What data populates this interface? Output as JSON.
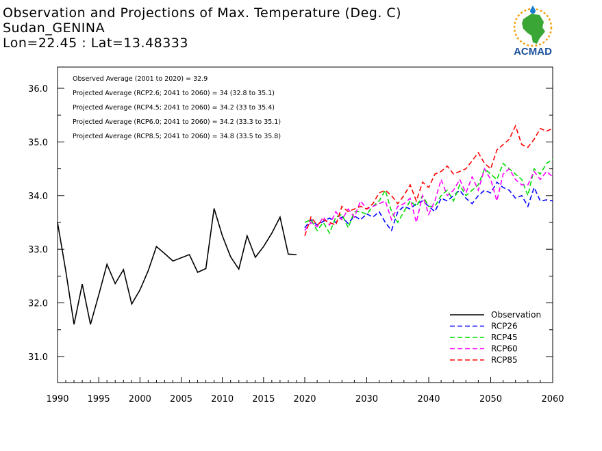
{
  "header": {
    "title": "Observation and Projections of Max. Temperature (Deg. C)",
    "station": "Sudan_GENINA",
    "coords": "Lon=22.45 : Lat=13.48333"
  },
  "logo": {
    "text": "ACMAD",
    "icon": "africa-logo-icon",
    "color": "#1a4f9c",
    "accent": "#f2a20f"
  },
  "annotations": [
    "Observed Average (2001 to 2020) = 32.9",
    "Projected Average (RCP2.6; 2041 to 2060) = 34 (32.8 to 35.1)",
    "Projected Average (RCP4.5; 2041 to 2060) = 34.2 (33 to 35.4)",
    "Projected Average (RCP6.0; 2041 to 2060) = 34.2 (33.3 to 35.1)",
    "Projected Average (RCP8.5; 2041 to 2060) = 34.8 (33.5 to 35.8)"
  ],
  "chart_data": {
    "type": "line",
    "title": "Observation and Projections of Max. Temperature (Deg. C)",
    "xlim": [
      1990,
      2060
    ],
    "ylim": [
      30.5,
      36.5
    ],
    "yticks": [
      "31.0",
      "32.0",
      "33.0",
      "34.0",
      "35.0",
      "36.0"
    ],
    "xticks_left": [
      "1990",
      "1995",
      "2000",
      "2005",
      "2010",
      "2015",
      "2020"
    ],
    "xticks_right": [
      "2020",
      "2030",
      "2040",
      "2050",
      "2060"
    ],
    "legend_position": "bottom-right",
    "series": [
      {
        "name": "Observation",
        "color": "#000000",
        "dash": false,
        "x": [
          1990,
          1991,
          1992,
          1993,
          1994,
          1995,
          1996,
          1997,
          1998,
          1999,
          2000,
          2001,
          2002,
          2003,
          2004,
          2005,
          2006,
          2007,
          2008,
          2009,
          2010,
          2011,
          2012,
          2013,
          2014,
          2015,
          2016,
          2017,
          2018,
          2019
        ],
        "y": [
          33.5,
          32.6,
          31.6,
          32.35,
          31.6,
          32.15,
          32.72,
          32.36,
          32.62,
          31.98,
          32.24,
          32.6,
          33.05,
          32.92,
          32.78,
          32.84,
          32.9,
          32.57,
          32.64,
          33.76,
          33.25,
          32.86,
          32.63,
          33.25,
          32.85,
          33.05,
          33.3,
          33.6,
          32.91,
          32.9
        ]
      },
      {
        "name": "RCP26",
        "color": "#0000ff",
        "dash": true,
        "x": [
          2020,
          2021,
          2022,
          2023,
          2024,
          2025,
          2026,
          2027,
          2028,
          2029,
          2030,
          2031,
          2032,
          2033,
          2034,
          2035,
          2036,
          2037,
          2038,
          2039,
          2040,
          2041,
          2042,
          2043,
          2044,
          2045,
          2046,
          2047,
          2048,
          2049,
          2050,
          2051,
          2052,
          2053,
          2054,
          2055,
          2056,
          2057,
          2058,
          2059,
          2060
        ],
        "y": [
          33.4,
          33.55,
          33.45,
          33.52,
          33.58,
          33.5,
          33.6,
          33.48,
          33.62,
          33.55,
          33.66,
          33.6,
          33.7,
          33.5,
          33.35,
          33.7,
          33.8,
          33.75,
          33.85,
          33.9,
          33.8,
          33.7,
          33.95,
          33.9,
          34.0,
          34.1,
          33.95,
          33.85,
          34.0,
          34.1,
          34.05,
          34.25,
          34.15,
          34.1,
          33.95,
          34.0,
          33.8,
          34.15,
          33.9,
          33.92,
          33.9
        ]
      },
      {
        "name": "RCP45",
        "color": "#00dd00",
        "dash": true,
        "x": [
          2020,
          2021,
          2022,
          2023,
          2024,
          2025,
          2026,
          2027,
          2028,
          2029,
          2030,
          2031,
          2032,
          2033,
          2034,
          2035,
          2036,
          2037,
          2038,
          2039,
          2040,
          2041,
          2042,
          2043,
          2044,
          2045,
          2046,
          2047,
          2048,
          2049,
          2050,
          2051,
          2052,
          2053,
          2054,
          2055,
          2056,
          2057,
          2058,
          2059,
          2060
        ],
        "y": [
          33.5,
          33.55,
          33.35,
          33.5,
          33.3,
          33.6,
          33.65,
          33.4,
          33.7,
          33.7,
          33.65,
          33.8,
          33.9,
          34.1,
          33.7,
          33.5,
          33.7,
          33.9,
          33.8,
          34.0,
          33.8,
          33.8,
          34.0,
          34.1,
          33.9,
          34.2,
          34.0,
          34.1,
          34.2,
          34.5,
          34.4,
          34.3,
          34.6,
          34.5,
          34.4,
          34.3,
          34.0,
          34.5,
          34.4,
          34.6,
          34.68
        ]
      },
      {
        "name": "RCP60",
        "color": "#ff00ff",
        "dash": true,
        "x": [
          2020,
          2021,
          2022,
          2023,
          2024,
          2025,
          2026,
          2027,
          2028,
          2029,
          2030,
          2031,
          2032,
          2033,
          2034,
          2035,
          2036,
          2037,
          2038,
          2039,
          2040,
          2041,
          2042,
          2043,
          2044,
          2045,
          2046,
          2047,
          2048,
          2049,
          2050,
          2051,
          2052,
          2053,
          2054,
          2055,
          2056,
          2057,
          2058,
          2059,
          2060
        ],
        "y": [
          33.35,
          33.5,
          33.42,
          33.6,
          33.45,
          33.7,
          33.55,
          33.75,
          33.6,
          33.9,
          33.75,
          33.8,
          33.85,
          33.9,
          33.55,
          33.8,
          33.85,
          33.95,
          33.5,
          34.0,
          33.65,
          33.9,
          34.3,
          34.0,
          34.1,
          34.3,
          34.05,
          34.35,
          34.1,
          34.5,
          34.3,
          33.9,
          34.4,
          34.5,
          34.3,
          34.2,
          34.2,
          34.45,
          34.3,
          34.45,
          34.35
        ]
      },
      {
        "name": "RCP85",
        "color": "#ff0000",
        "dash": true,
        "x": [
          2020,
          2021,
          2022,
          2023,
          2024,
          2025,
          2026,
          2027,
          2028,
          2029,
          2030,
          2031,
          2032,
          2033,
          2034,
          2035,
          2036,
          2037,
          2038,
          2039,
          2040,
          2041,
          2042,
          2043,
          2044,
          2045,
          2046,
          2047,
          2048,
          2049,
          2050,
          2051,
          2052,
          2053,
          2054,
          2055,
          2056,
          2057,
          2058,
          2059,
          2060
        ],
        "y": [
          33.25,
          33.6,
          33.45,
          33.55,
          33.5,
          33.45,
          33.8,
          33.7,
          33.75,
          33.8,
          33.75,
          33.85,
          34.05,
          34.1,
          34.0,
          33.85,
          34.0,
          34.2,
          33.9,
          34.25,
          34.15,
          34.4,
          34.45,
          34.55,
          34.4,
          34.45,
          34.5,
          34.65,
          34.8,
          34.6,
          34.5,
          34.85,
          34.95,
          35.05,
          35.3,
          34.95,
          34.9,
          35.05,
          35.25,
          35.2,
          35.25
        ]
      }
    ]
  }
}
